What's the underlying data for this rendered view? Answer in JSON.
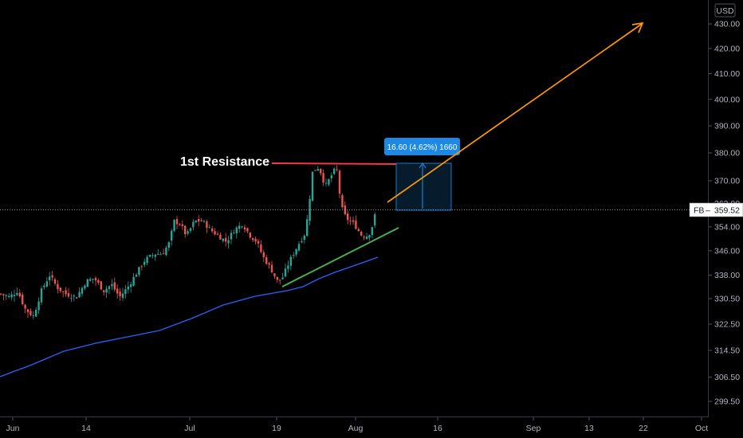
{
  "currency": "USD",
  "chart_data": {
    "type": "candlestick",
    "symbol": "FB",
    "last_price": 359.52,
    "last_price_label": "359.52",
    "y_axis": {
      "ticks": [
        299.5,
        306.5,
        314.5,
        322.5,
        330.5,
        338.0,
        346.0,
        354.0,
        362.0,
        370.0,
        380.0,
        390.0,
        400.0,
        410.0,
        420.0,
        430.0
      ],
      "tick_labels": [
        "299.50",
        "306.50",
        "314.50",
        "322.50",
        "330.50",
        "338.00",
        "346.00",
        "354.00",
        "362.00",
        "370.00",
        "380.00",
        "390.00",
        "400.00",
        "410.00",
        "420.00",
        "430.00"
      ],
      "scale": "log"
    },
    "x_axis": {
      "tick_labels": [
        "Jun",
        "14",
        "Jul",
        "19",
        "Aug",
        "16",
        "Sep",
        "13",
        "22",
        "Oct"
      ]
    },
    "annotations": {
      "resistance_label": "1st Resistance",
      "resistance_price": 376.5,
      "measure_label": "16.60 (4.62%) 1660",
      "measure_from": 359.5,
      "measure_to": 376.1
    },
    "colors": {
      "up": "#26a69a",
      "down": "#ef5350",
      "ma": "#2962ff",
      "resistance": "#f23645",
      "trendline": "#4caf50",
      "arrow": "#ff9800",
      "measure": "#2196f3"
    }
  }
}
